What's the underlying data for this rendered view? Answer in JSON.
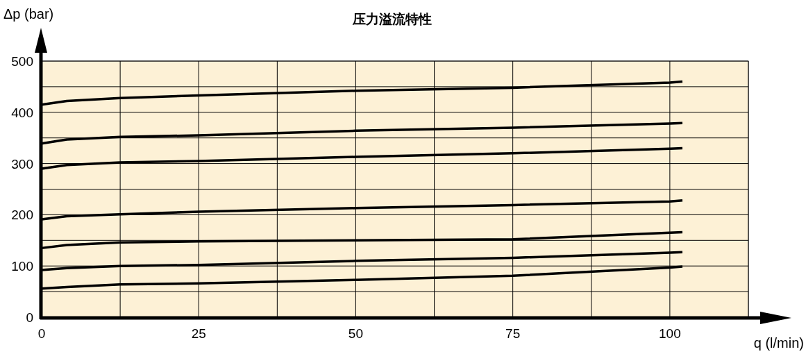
{
  "chart_data": {
    "type": "line",
    "title": "压力溢流特性",
    "xlabel": "q (l/min)",
    "ylabel": "Δp (bar)",
    "xlim": [
      0,
      112.5
    ],
    "ylim": [
      0,
      500
    ],
    "xticks": [
      0,
      {
        "value": 12.5,
        "label": null
      },
      25,
      {
        "value": 37.5,
        "label": null
      },
      50,
      {
        "value": 62.5,
        "label": null
      },
      75,
      {
        "value": 87.5,
        "label": null
      },
      100,
      {
        "value": 112.5,
        "label": null
      }
    ],
    "yticks": [
      0,
      {
        "value": 50,
        "label": null
      },
      100,
      {
        "value": 150,
        "label": null
      },
      200,
      {
        "value": 250,
        "label": null
      },
      300,
      {
        "value": 350,
        "label": null
      },
      400,
      {
        "value": 450,
        "label": null
      },
      500
    ],
    "grid": true,
    "marker": "none",
    "line_style": "solid",
    "x": [
      0,
      4,
      12.5,
      25,
      50,
      75,
      100,
      102
    ],
    "series": [
      {
        "color": "#000000",
        "values": [
          415,
          422,
          428,
          433,
          442,
          448,
          458,
          460
        ]
      },
      {
        "color": "#000000",
        "values": [
          339,
          347,
          352,
          355,
          364,
          370,
          378,
          379
        ]
      },
      {
        "color": "#000000",
        "values": [
          290,
          297,
          302,
          305,
          313,
          320,
          329,
          330
        ]
      },
      {
        "color": "#000000",
        "values": [
          191,
          197,
          201,
          206,
          213,
          219,
          226,
          228
        ]
      },
      {
        "color": "#000000",
        "values": [
          135,
          141,
          146,
          148,
          150,
          152,
          165,
          166
        ]
      },
      {
        "color": "#000000",
        "values": [
          92,
          96,
          100,
          102,
          110,
          116,
          126,
          127
        ]
      },
      {
        "color": "#000000",
        "values": [
          56,
          59,
          64,
          66,
          73,
          81,
          97,
          99
        ]
      }
    ]
  }
}
